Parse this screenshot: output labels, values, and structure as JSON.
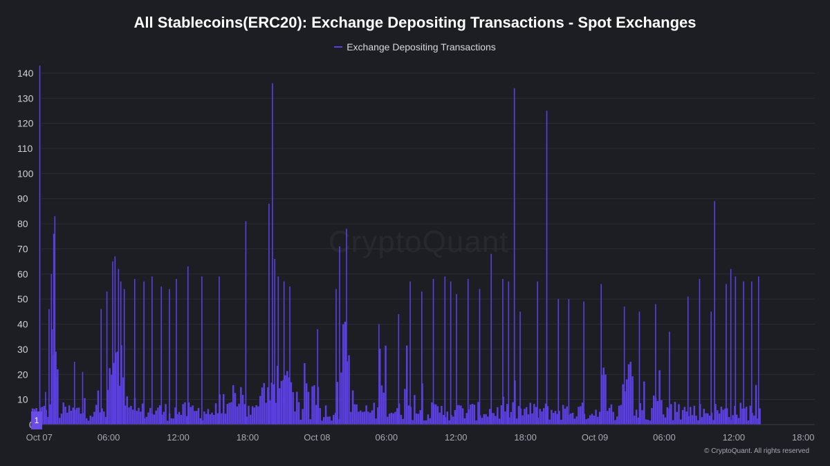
{
  "colors": {
    "background": "#1d1d24",
    "series": "#5b3fe0",
    "grid": "#2c2c34"
  },
  "watermark": "CryptoQuant",
  "copyright": "© CryptoQuant. All rights reserved",
  "range_handle_label": "1",
  "chart_data": {
    "type": "bar",
    "title": "All Stablecoins(ERC20): Exchange Depositing Transactions - Spot Exchanges",
    "xlabel": "",
    "ylabel": "",
    "ylim": [
      0,
      143
    ],
    "yticks": [
      10,
      20,
      30,
      40,
      50,
      60,
      70,
      80,
      90,
      100,
      110,
      120,
      130,
      140
    ],
    "y_zero_label": "0",
    "xlim_hours": [
      -1,
      67
    ],
    "xticks": [
      {
        "hour": 0,
        "label": "Oct 07"
      },
      {
        "hour": 6,
        "label": "06:00"
      },
      {
        "hour": 12,
        "label": "12:00"
      },
      {
        "hour": 18,
        "label": "18:00"
      },
      {
        "hour": 24,
        "label": "Oct 08"
      },
      {
        "hour": 30,
        "label": "06:00"
      },
      {
        "hour": 36,
        "label": "12:00"
      },
      {
        "hour": 42,
        "label": "18:00"
      },
      {
        "hour": 48,
        "label": "Oct 09"
      },
      {
        "hour": 54,
        "label": "06:00"
      },
      {
        "hour": 60,
        "label": "12:00"
      },
      {
        "hour": 66,
        "label": "18:00"
      }
    ],
    "grid": true,
    "legend": "top-center",
    "series": [
      {
        "name": "Exchange Depositing Transactions",
        "sampling_minutes": 10,
        "spikes": [
          [
            0.0,
            143
          ],
          [
            0.5,
            13
          ],
          [
            0.8,
            46
          ],
          [
            1.0,
            60
          ],
          [
            1.2,
            76
          ],
          [
            1.3,
            83
          ],
          [
            1.5,
            19
          ],
          [
            3.0,
            25
          ],
          [
            3.7,
            21
          ],
          [
            5.3,
            46
          ],
          [
            5.8,
            53
          ],
          [
            6.3,
            65
          ],
          [
            6.5,
            67
          ],
          [
            6.8,
            62
          ],
          [
            7.0,
            57
          ],
          [
            7.3,
            54
          ],
          [
            8.2,
            58
          ],
          [
            9.0,
            57
          ],
          [
            9.7,
            59
          ],
          [
            10.5,
            55
          ],
          [
            11.2,
            54
          ],
          [
            11.8,
            58
          ],
          [
            12.8,
            63
          ],
          [
            14.0,
            59
          ],
          [
            15.5,
            59
          ],
          [
            17.8,
            81
          ],
          [
            19.8,
            88
          ],
          [
            20.1,
            136
          ],
          [
            20.3,
            66
          ],
          [
            20.6,
            59
          ],
          [
            21.1,
            57
          ],
          [
            21.6,
            55
          ],
          [
            24.0,
            38
          ],
          [
            25.6,
            54
          ],
          [
            25.9,
            71
          ],
          [
            26.5,
            78
          ],
          [
            29.3,
            40
          ],
          [
            31.0,
            44
          ],
          [
            32.0,
            57
          ],
          [
            33.0,
            53
          ],
          [
            34.0,
            58
          ],
          [
            35.0,
            59
          ],
          [
            35.5,
            57
          ],
          [
            36.0,
            52
          ],
          [
            37.0,
            58
          ],
          [
            38.0,
            54
          ],
          [
            39.0,
            68
          ],
          [
            40.0,
            58
          ],
          [
            40.5,
            57
          ],
          [
            41.0,
            134
          ],
          [
            41.5,
            45
          ],
          [
            43.0,
            57
          ],
          [
            43.8,
            125
          ],
          [
            44.8,
            50
          ],
          [
            45.7,
            50
          ],
          [
            47.0,
            49
          ],
          [
            48.5,
            56
          ],
          [
            50.5,
            47
          ],
          [
            51.8,
            45
          ],
          [
            53.2,
            48
          ],
          [
            54.4,
            37
          ],
          [
            56.0,
            51
          ],
          [
            57.0,
            58
          ],
          [
            58.0,
            45
          ],
          [
            58.3,
            89
          ],
          [
            59.3,
            56
          ],
          [
            59.7,
            62
          ],
          [
            60.1,
            59
          ],
          [
            60.8,
            57
          ],
          [
            61.5,
            57
          ],
          [
            62.1,
            59
          ]
        ],
        "plateaus": [
          {
            "start": 0.9,
            "end": 1.6,
            "level": 38
          },
          {
            "start": 5.8,
            "end": 7.2,
            "level": 30
          },
          {
            "start": 16.6,
            "end": 17.8,
            "level": 14
          },
          {
            "start": 19.0,
            "end": 22.0,
            "level": 18
          },
          {
            "start": 25.9,
            "end": 26.8,
            "level": 35
          },
          {
            "start": 29.3,
            "end": 30.0,
            "level": 28
          },
          {
            "start": 31.4,
            "end": 31.8,
            "level": 30
          },
          {
            "start": 48.4,
            "end": 48.9,
            "level": 20
          },
          {
            "start": 50.3,
            "end": 51.2,
            "level": 28
          },
          {
            "start": 53.0,
            "end": 53.8,
            "level": 20
          }
        ],
        "baseline_level": 5,
        "data_end_hour": 62.3
      }
    ]
  }
}
